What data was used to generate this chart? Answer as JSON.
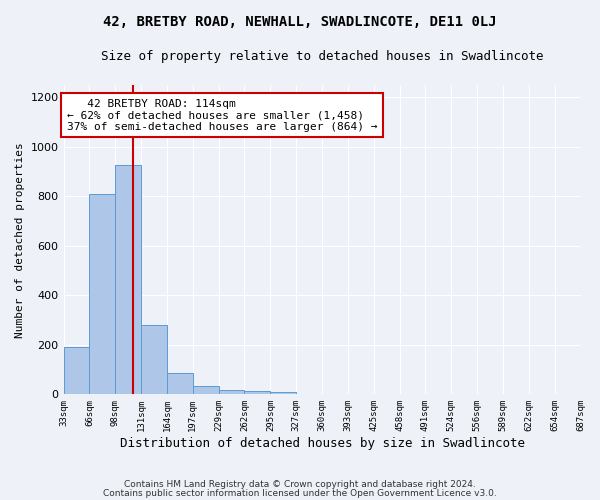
{
  "title": "42, BRETBY ROAD, NEWHALL, SWADLINCOTE, DE11 0LJ",
  "subtitle": "Size of property relative to detached houses in Swadlincote",
  "xlabel": "Distribution of detached houses by size in Swadlincote",
  "ylabel": "Number of detached properties",
  "bar_values": [
    190,
    810,
    925,
    280,
    85,
    33,
    18,
    12,
    10,
    0,
    0,
    0,
    0,
    0,
    0,
    0,
    0,
    0,
    0,
    0
  ],
  "bin_labels": [
    "33sqm",
    "66sqm",
    "98sqm",
    "131sqm",
    "164sqm",
    "197sqm",
    "229sqm",
    "262sqm",
    "295sqm",
    "327sqm",
    "360sqm",
    "393sqm",
    "425sqm",
    "458sqm",
    "491sqm",
    "524sqm",
    "556sqm",
    "589sqm",
    "622sqm",
    "654sqm",
    "687sqm"
  ],
  "bar_color": "#aec6e8",
  "bar_edge_color": "#5b9bd5",
  "vline_x": 2.67,
  "vline_color": "#cc0000",
  "annotation_line1": "   42 BRETBY ROAD: 114sqm",
  "annotation_line2": "← 62% of detached houses are smaller (1,458)",
  "annotation_line3": "37% of semi-detached houses are larger (864) →",
  "annotation_color": "#cc0000",
  "ylim": [
    0,
    1250
  ],
  "yticks": [
    0,
    200,
    400,
    600,
    800,
    1000,
    1200
  ],
  "footer1": "Contains HM Land Registry data © Crown copyright and database right 2024.",
  "footer2": "Contains public sector information licensed under the Open Government Licence v3.0.",
  "background_color": "#eef2f8",
  "grid_color": "#ffffff",
  "title_fontsize": 10,
  "subtitle_fontsize": 9
}
